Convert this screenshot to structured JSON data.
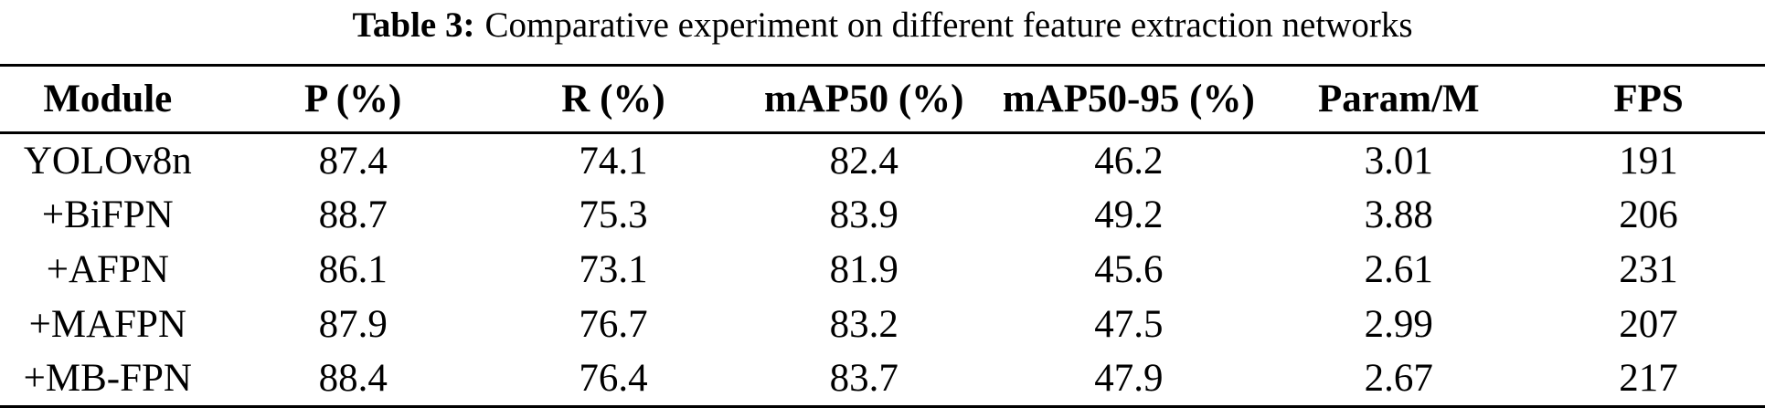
{
  "caption": {
    "label": "Table 3:",
    "text": "Comparative experiment on different feature extraction networks"
  },
  "table": {
    "columns": [
      "Module",
      "P (%)",
      "R (%)",
      "mAP50 (%)",
      "mAP50-95 (%)",
      "Param/M",
      "FPS"
    ],
    "rows": [
      [
        "YOLOv8n",
        "87.4",
        "74.1",
        "82.4",
        "46.2",
        "3.01",
        "191"
      ],
      [
        "+BiFPN",
        "88.7",
        "75.3",
        "83.9",
        "49.2",
        "3.88",
        "206"
      ],
      [
        "+AFPN",
        "86.1",
        "73.1",
        "81.9",
        "45.6",
        "2.61",
        "231"
      ],
      [
        "+MAFPN",
        "87.9",
        "76.7",
        "83.2",
        "47.5",
        "2.99",
        "207"
      ],
      [
        "+MB-FPN",
        "88.4",
        "76.4",
        "83.7",
        "47.9",
        "2.67",
        "217"
      ]
    ]
  },
  "colors": {
    "text": "#000000",
    "background": "#ffffff",
    "rule": "#000000"
  }
}
